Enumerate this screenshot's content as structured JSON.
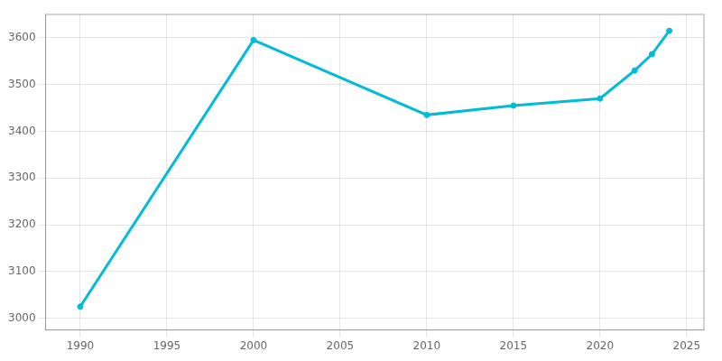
{
  "chart_data": {
    "type": "line",
    "x": [
      1990,
      2000,
      2010,
      2015,
      2020,
      2022,
      2023,
      2024
    ],
    "values": [
      3025,
      3595,
      3435,
      3455,
      3470,
      3530,
      3565,
      3615
    ],
    "color": "#00BCD4",
    "marker": "circle",
    "xlim": [
      1988,
      2026
    ],
    "ylim": [
      2975,
      3650
    ],
    "xticks": [
      1990,
      1995,
      2000,
      2005,
      2010,
      2015,
      2020,
      2025
    ],
    "yticks": [
      3000,
      3100,
      3200,
      3300,
      3400,
      3500,
      3600
    ],
    "grid": true
  }
}
